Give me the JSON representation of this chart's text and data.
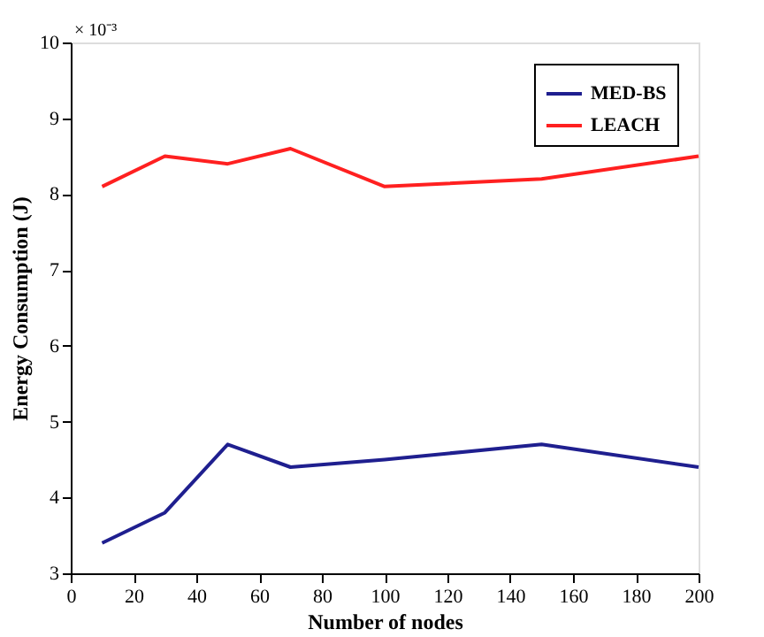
{
  "chart_data": {
    "type": "line",
    "xlabel": "Number of nodes",
    "ylabel": "Energy Consumption (J)",
    "annotations": [
      "× 10⁻³"
    ],
    "x": [
      10,
      30,
      50,
      70,
      100,
      150,
      200
    ],
    "series": [
      {
        "name": "MED-BS",
        "color": "#1f1f8f",
        "values": [
          3.4,
          3.8,
          4.7,
          4.4,
          4.5,
          4.7,
          4.4
        ]
      },
      {
        "name": "LEACH",
        "color": "#ff2020",
        "values": [
          8.1,
          8.5,
          8.4,
          8.6,
          8.1,
          8.2,
          8.5
        ]
      }
    ],
    "xlim": [
      0,
      200
    ],
    "xticks": [
      0,
      20,
      40,
      60,
      80,
      100,
      120,
      140,
      160,
      180,
      200
    ],
    "ylim": [
      3,
      10
    ],
    "yticks": [
      3,
      4,
      5,
      6,
      7,
      8,
      9,
      10
    ],
    "grid": false,
    "legend": "top right",
    "marker": "none",
    "line_style": "solid"
  }
}
